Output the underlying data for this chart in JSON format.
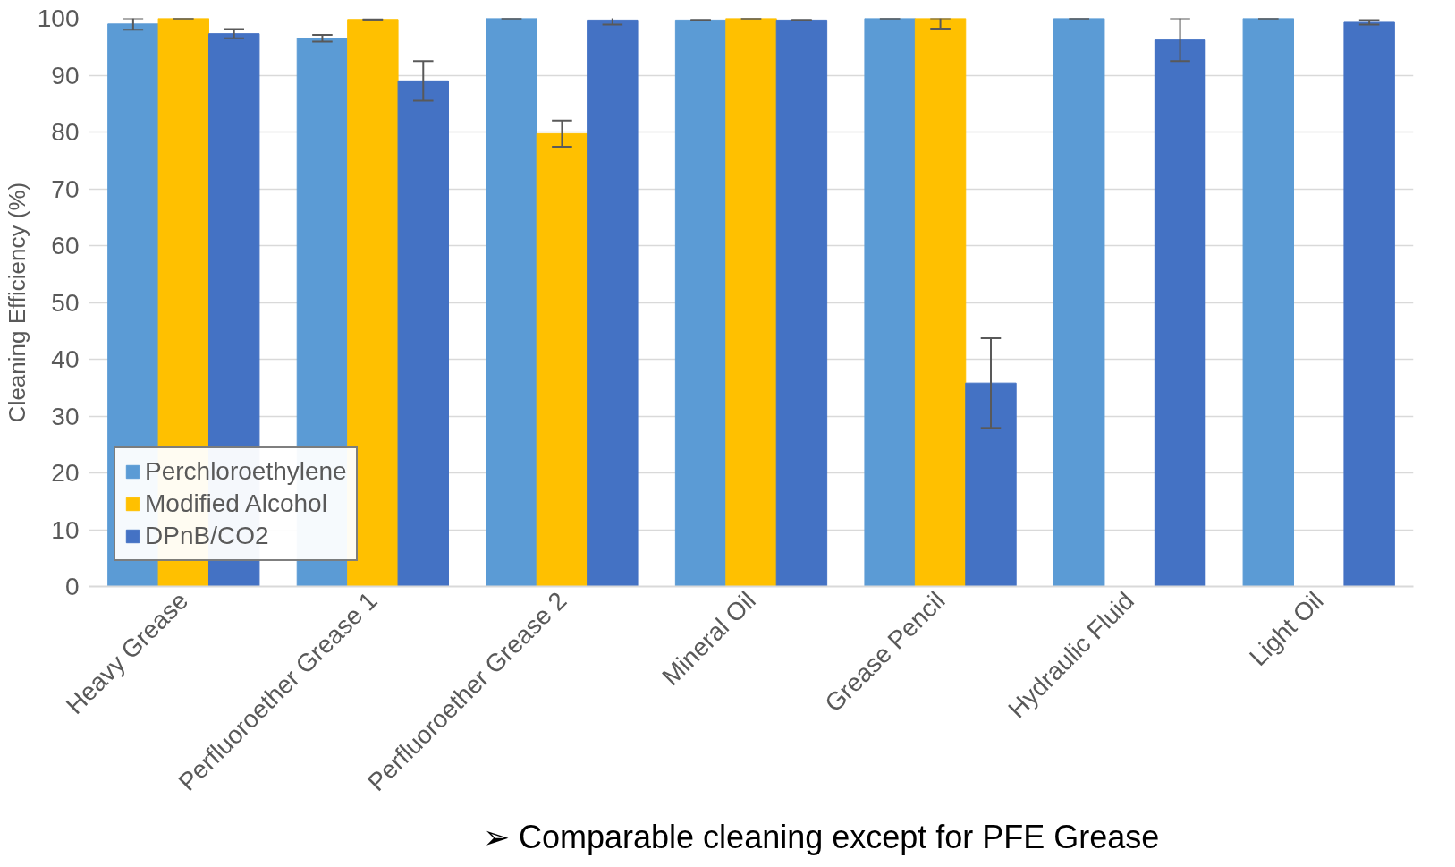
{
  "chart_data": {
    "type": "bar",
    "ylabel": "Cleaning Efficiency (%)",
    "categories": [
      "Heavy Grease",
      "Perfluoroether Grease 1",
      "Perfluoroether Grease 2",
      "Mineral Oil",
      "Grease Pencil",
      "Hydraulic Fluid",
      "Light Oil"
    ],
    "series": [
      {
        "name": "Perchloroethylene",
        "color": "#5b9bd5",
        "values": [
          99,
          96.5,
          100,
          99.7,
          100,
          100,
          100
        ],
        "errors": [
          1,
          0.6,
          0,
          0,
          0,
          0,
          0
        ]
      },
      {
        "name": "Modified Alcohol",
        "color": "#ffc000",
        "values": [
          100,
          99.8,
          79.7,
          100,
          100,
          null,
          null
        ],
        "errors": [
          0,
          0,
          2.3,
          0,
          [
            98.2,
            100
          ],
          null,
          null
        ]
      },
      {
        "name": "DPnB/CO2",
        "color": "#4472c4",
        "values": [
          97.3,
          89,
          99.7,
          99.7,
          35.8,
          96.2,
          99.3
        ],
        "errors": [
          0.8,
          3.5,
          0.8,
          0,
          7.9,
          [
            92.5,
            100
          ],
          0.4
        ]
      }
    ],
    "ylim": [
      0,
      100
    ],
    "yticks": [
      0,
      10,
      20,
      30,
      40,
      50,
      60,
      70,
      80,
      90,
      100
    ],
    "grid": "y",
    "legend": "bottom left",
    "annotations": [
      "➢ Comparable cleaning except for PFE Grease"
    ]
  }
}
